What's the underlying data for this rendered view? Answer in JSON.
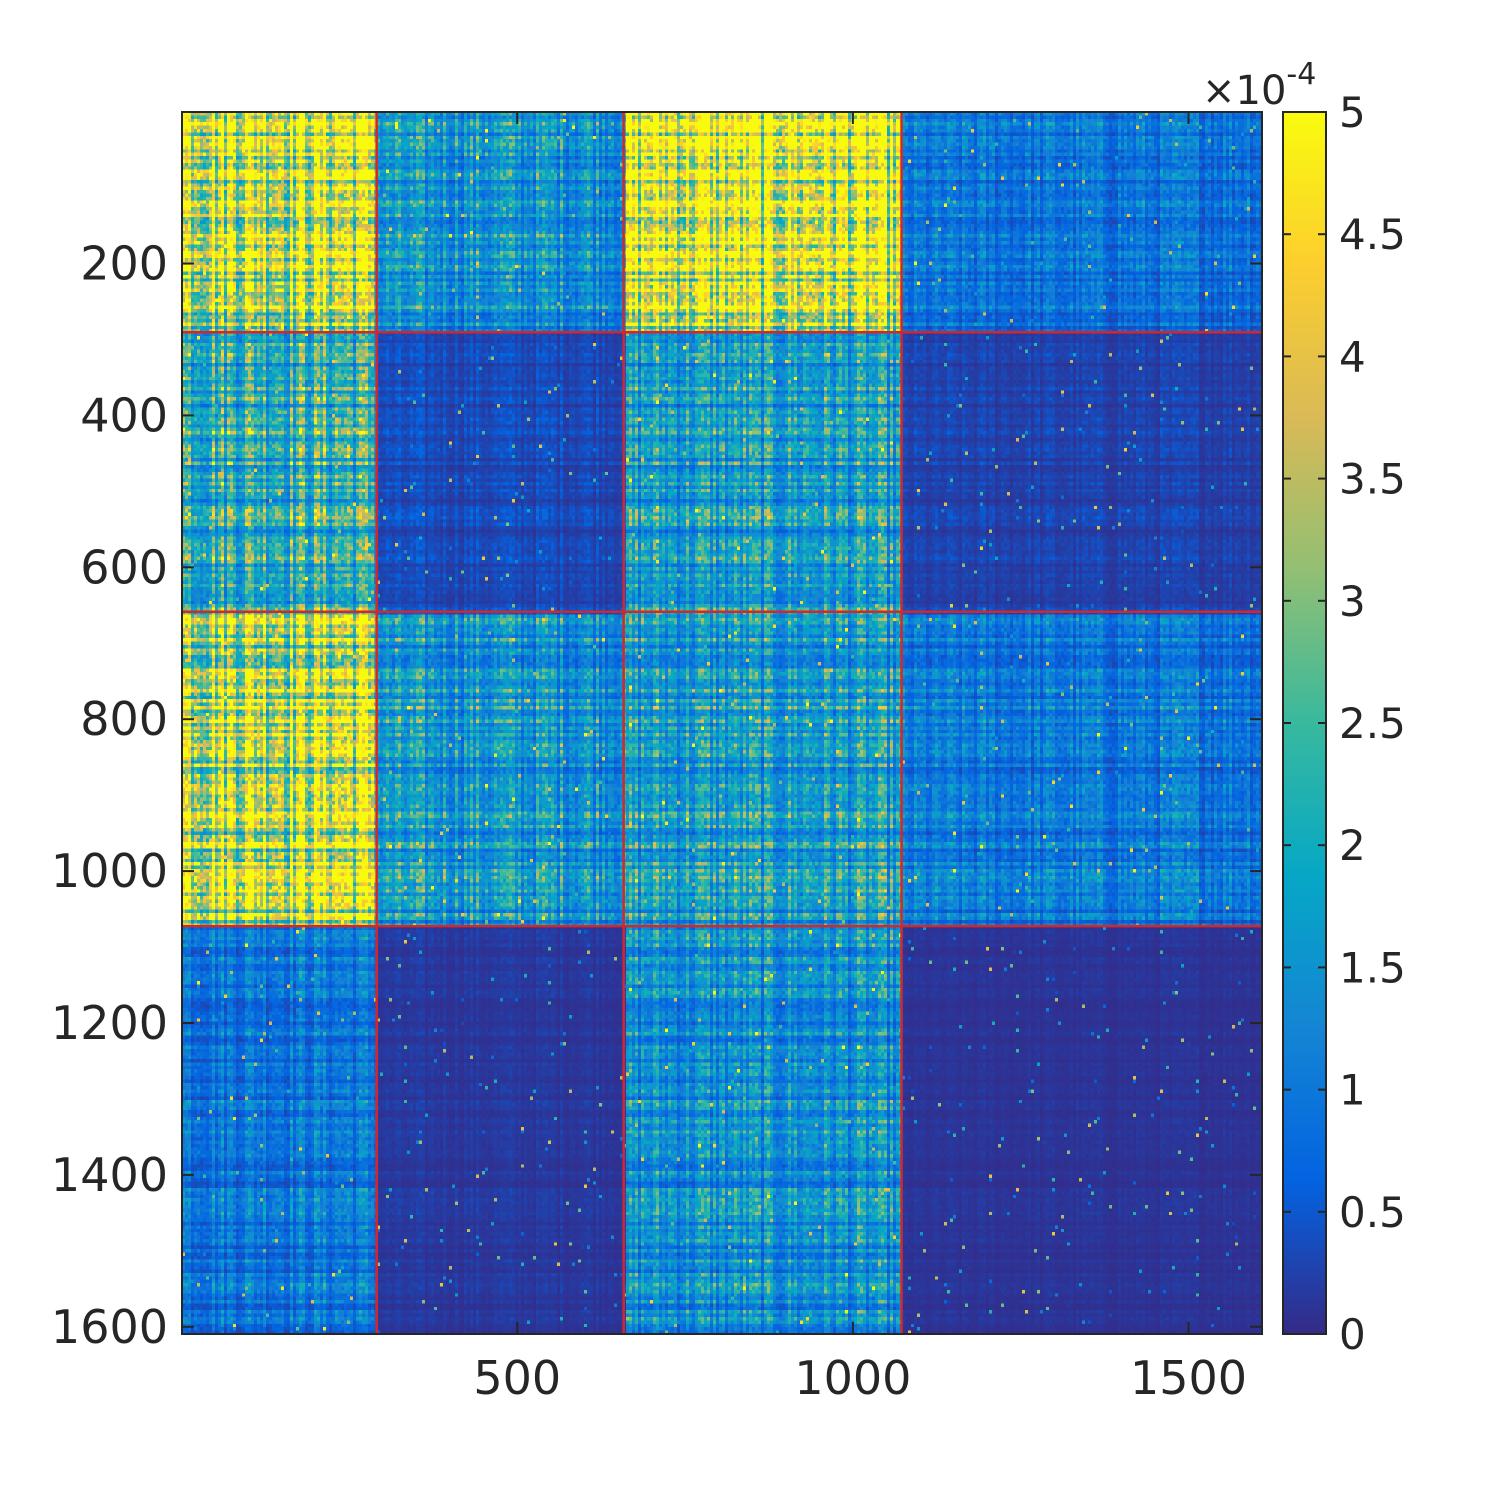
{
  "chart_data": {
    "type": "heatmap",
    "title": "",
    "xlabel": "",
    "ylabel": "",
    "matrix_size": 1609,
    "xlim": [
      0.5,
      1609.5
    ],
    "ylim": [
      0.5,
      1609.5
    ],
    "y_reversed": true,
    "x_ticks": [
      500,
      1000,
      1500
    ],
    "y_ticks": [
      200,
      400,
      600,
      800,
      1000,
      1200,
      1400,
      1600
    ],
    "x_tick_labels": [
      "500",
      "1000",
      "1500"
    ],
    "y_tick_labels": [
      "200",
      "400",
      "600",
      "800",
      "1000",
      "1200",
      "1400",
      "1600"
    ],
    "colormap": "parula",
    "colormap_stops": [
      "#352a87",
      "#0363e1",
      "#1485d4",
      "#06a7c6",
      "#38b99e",
      "#92bf73",
      "#d9ba56",
      "#fcce2e",
      "#f9fb0e"
    ],
    "clim": [
      0,
      0.0005
    ],
    "colorbar": {
      "location": "right",
      "ticks": [
        0,
        0.5,
        1,
        1.5,
        2,
        2.5,
        3,
        3.5,
        4,
        4.5,
        5
      ],
      "tick_labels": [
        "0",
        "0.5",
        "1",
        "1.5",
        "2",
        "2.5",
        "3",
        "3.5",
        "4",
        "4.5",
        "5"
      ],
      "exponent_base": "×10",
      "exponent_power": "-4"
    },
    "block_boundaries": [
      290,
      658,
      1072
    ],
    "boundary_color": "#d62728",
    "blocks": [
      {
        "rows": [
          1,
          290
        ],
        "cols": [
          1,
          290
        ],
        "mean_e4": 4.4
      },
      {
        "rows": [
          1,
          290
        ],
        "cols": [
          291,
          658
        ],
        "mean_e4": 1.5
      },
      {
        "rows": [
          1,
          290
        ],
        "cols": [
          659,
          1072
        ],
        "mean_e4": 4.5
      },
      {
        "rows": [
          1,
          290
        ],
        "cols": [
          1073,
          1609
        ],
        "mean_e4": 0.9
      },
      {
        "rows": [
          291,
          658
        ],
        "cols": [
          1,
          290
        ],
        "mean_e4": 2.3
      },
      {
        "rows": [
          291,
          658
        ],
        "cols": [
          291,
          658
        ],
        "mean_e4": 0.35
      },
      {
        "rows": [
          291,
          658
        ],
        "cols": [
          659,
          1072
        ],
        "mean_e4": 1.7
      },
      {
        "rows": [
          291,
          658
        ],
        "cols": [
          1073,
          1609
        ],
        "mean_e4": 0.25
      },
      {
        "rows": [
          659,
          1072
        ],
        "cols": [
          1,
          290
        ],
        "mean_e4": 4.3
      },
      {
        "rows": [
          659,
          1072
        ],
        "cols": [
          291,
          658
        ],
        "mean_e4": 1.6
      },
      {
        "rows": [
          659,
          1072
        ],
        "cols": [
          659,
          1072
        ],
        "mean_e4": 1.7
      },
      {
        "rows": [
          659,
          1072
        ],
        "cols": [
          1073,
          1609
        ],
        "mean_e4": 1.0
      },
      {
        "rows": [
          1073,
          1609
        ],
        "cols": [
          1,
          290
        ],
        "mean_e4": 1.0
      },
      {
        "rows": [
          1073,
          1609
        ],
        "cols": [
          291,
          658
        ],
        "mean_e4": 0.15
      },
      {
        "rows": [
          1073,
          1609
        ],
        "cols": [
          659,
          1072
        ],
        "mean_e4": 1.4
      },
      {
        "rows": [
          1073,
          1609
        ],
        "cols": [
          1073,
          1609
        ],
        "mean_e4": 0.1
      }
    ],
    "grid": false
  }
}
